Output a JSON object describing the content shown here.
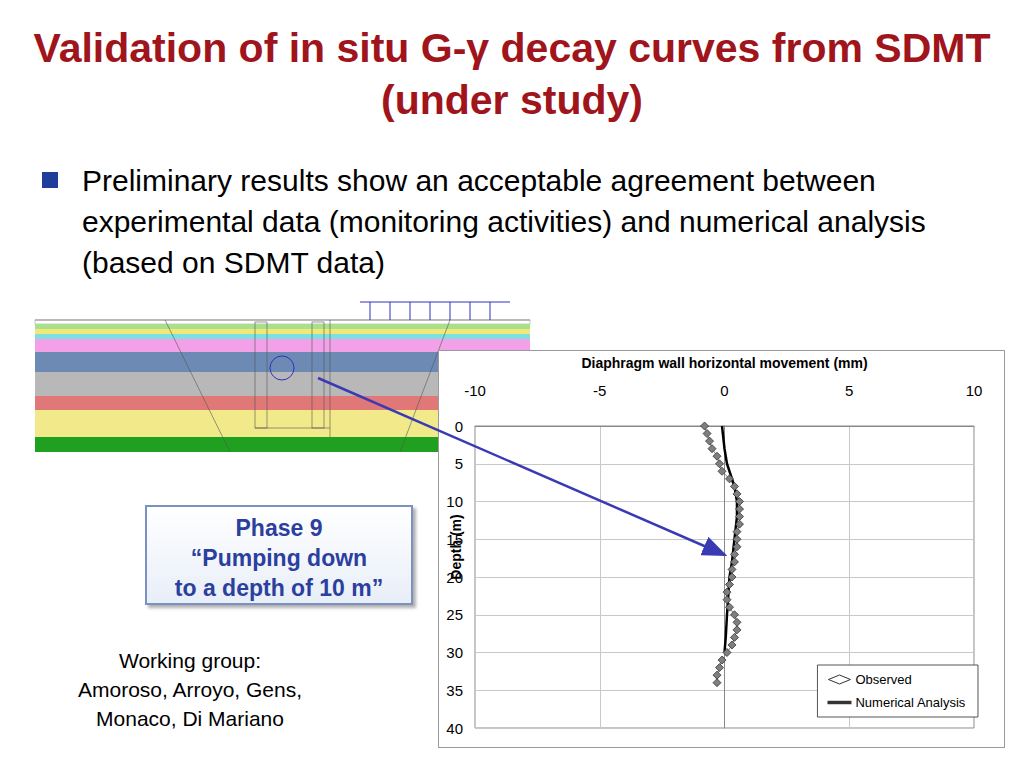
{
  "slide": {
    "title": "Validation of in situ G-γ decay curves from SDMT (under study)",
    "bullet": "Preliminary results show an acceptable agreement between experimental data (monitoring activities) and numerical analysis (based on SDMT data)",
    "phase_box": [
      "Phase 9",
      "“Pumping down",
      "to a depth of 10 m”"
    ],
    "working_group": [
      "Working group:",
      "Amoroso, Arroyo, Gens,",
      "Monaco, Di Mariano"
    ]
  },
  "chart_data": {
    "type": "line",
    "x_label": "Diaphragm wall horizontal movement (mm)",
    "y_label": "Depth (m)",
    "xlim": [
      -10,
      10
    ],
    "xticks": [
      -10,
      -5,
      0,
      5,
      10
    ],
    "ylim": [
      40,
      0
    ],
    "yticks": [
      0,
      5,
      10,
      15,
      20,
      25,
      30,
      35,
      40
    ],
    "grid": true,
    "legend": "bottom-right",
    "series": [
      {
        "name": "Observed",
        "color": "#7f7f7f",
        "marker": "diamond",
        "line_style": "solid",
        "x": [
          -0.8,
          -0.7,
          -0.6,
          -0.5,
          -0.3,
          -0.2,
          -0.1,
          0.2,
          0.4,
          0.5,
          0.6,
          0.6,
          0.6,
          0.6,
          0.5,
          0.5,
          0.5,
          0.4,
          0.4,
          0.3,
          0.3,
          0.2,
          0.1,
          0.1,
          0.2,
          0.4,
          0.5,
          0.5,
          0.4,
          0.3,
          0.1,
          -0.1,
          -0.2,
          -0.3,
          -0.3
        ],
        "values": [
          0,
          1,
          2,
          3,
          4,
          5,
          6,
          7,
          8,
          9,
          10,
          11,
          12,
          13,
          14,
          15,
          16,
          17,
          18,
          19,
          20,
          21,
          22,
          23,
          24,
          25,
          26,
          27,
          28,
          29,
          30,
          31,
          32,
          33,
          34
        ]
      },
      {
        "name": "Numerical Analysis",
        "color": "#000000",
        "marker": "none",
        "line_style": "solid",
        "x": [
          -0.1,
          0.0,
          0.1,
          0.3,
          0.4,
          0.5,
          0.5,
          0.4,
          0.3,
          0.2,
          0.1,
          0.05,
          0.0
        ],
        "values": [
          0,
          3,
          5,
          7,
          8,
          10,
          12,
          15,
          18,
          20,
          25,
          28,
          30
        ]
      }
    ]
  }
}
